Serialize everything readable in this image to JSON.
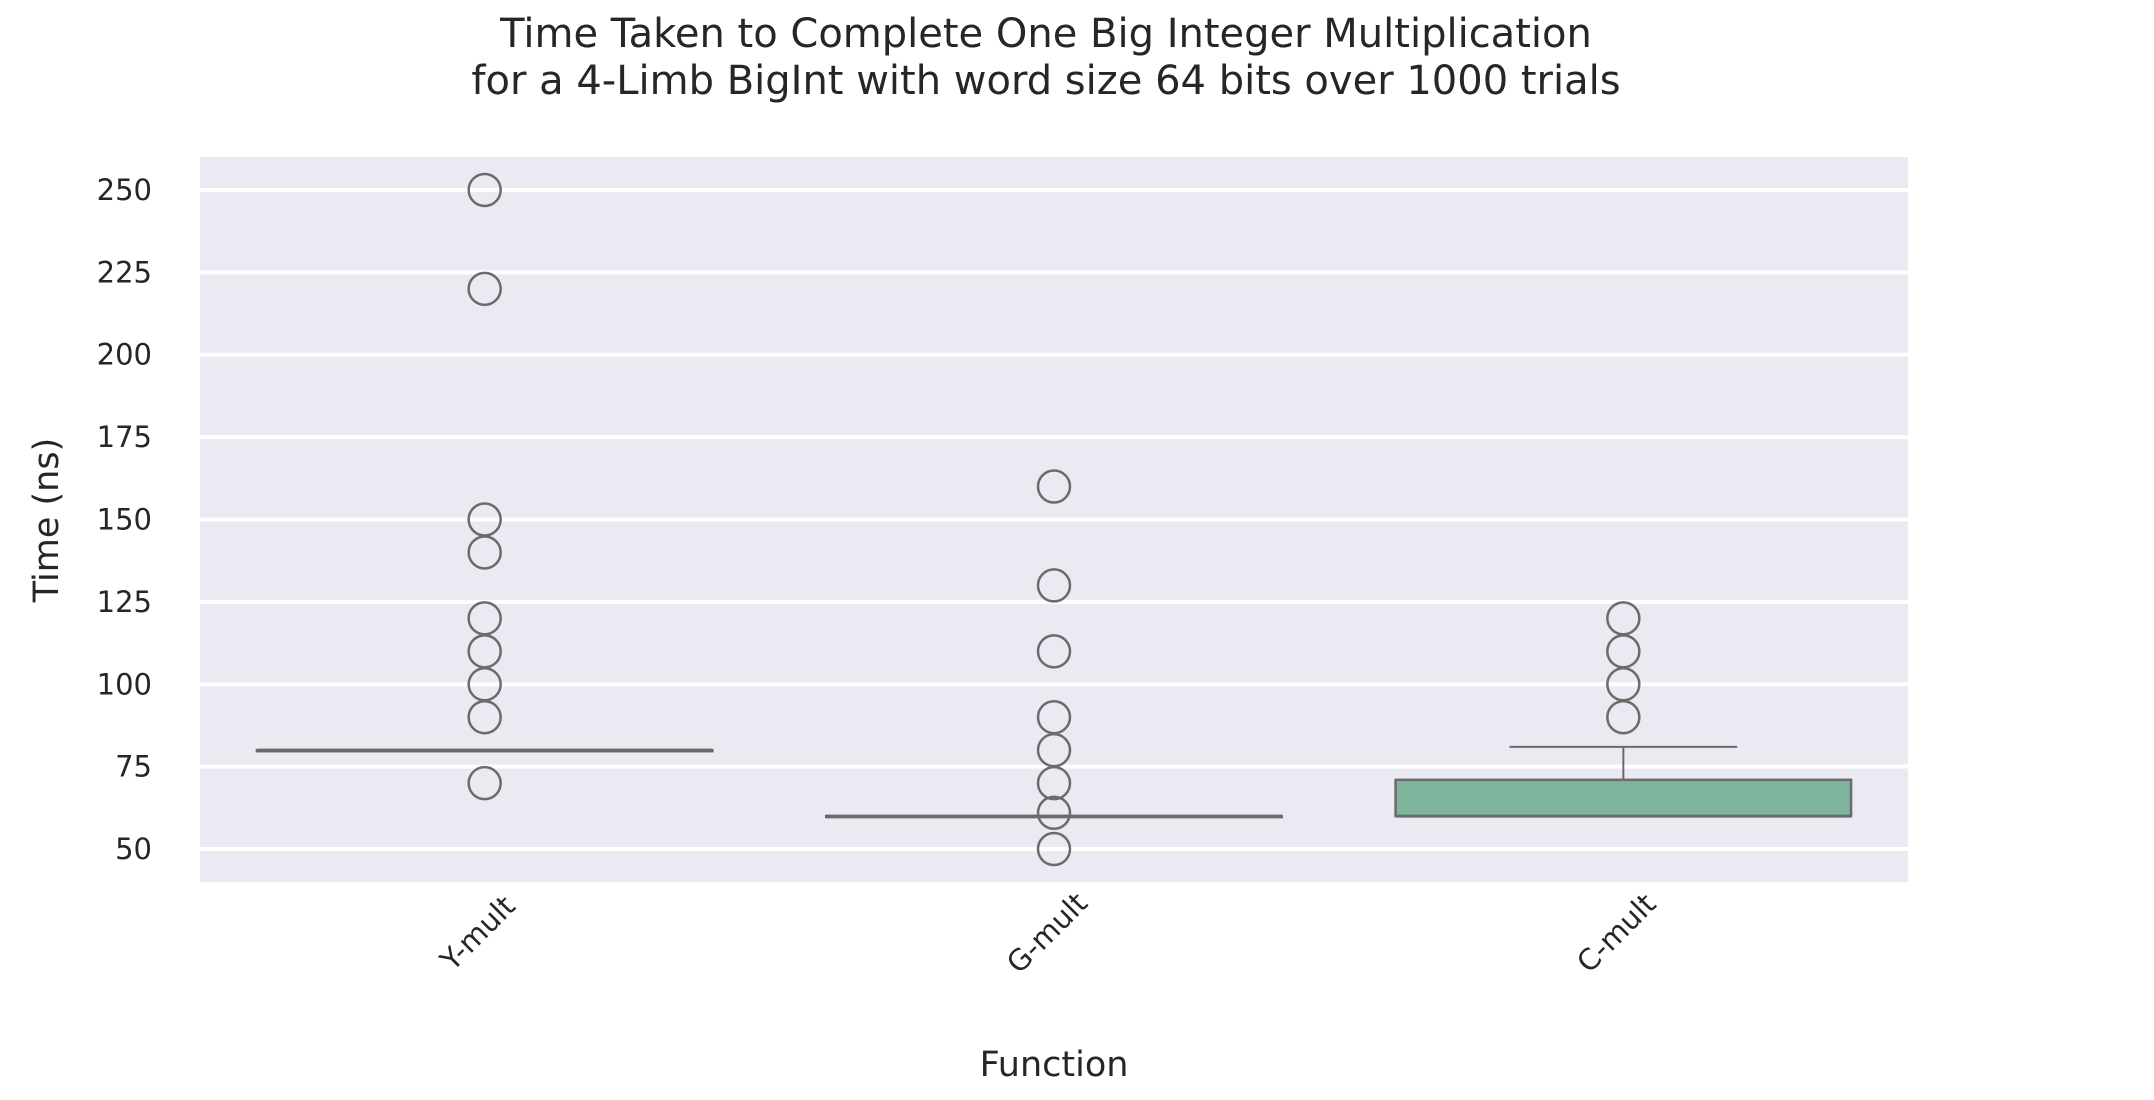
{
  "chart_data": {
    "type": "box",
    "title": "Time Taken to Complete One Big Integer Multiplication",
    "subtitle": "for a 4-Limb BigInt with word size 64 bits over 1000 trials",
    "xlabel": "Function",
    "ylabel": "Time (ns)",
    "ylim": [
      40,
      260
    ],
    "yticks": [
      50,
      75,
      100,
      125,
      150,
      175,
      200,
      225,
      250
    ],
    "grid": true,
    "categories": [
      "Y-mult",
      "G-mult",
      "C-mult"
    ],
    "boxes": [
      {
        "category": "Y-mult",
        "whisker_low": 80,
        "q1": 80,
        "median": 80,
        "q3": 80,
        "whisker_high": 80,
        "fill": "#e5e5ef",
        "outliers": [
          250,
          220,
          150,
          140,
          120,
          110,
          100,
          90,
          70
        ]
      },
      {
        "category": "G-mult",
        "whisker_low": 60,
        "q1": 60,
        "median": 60,
        "q3": 60,
        "whisker_high": 60,
        "fill": "#e5e5ef",
        "outliers": [
          160,
          130,
          110,
          90,
          80,
          70,
          61,
          50
        ]
      },
      {
        "category": "C-mult",
        "whisker_low": 60,
        "q1": 60,
        "median": 60,
        "q3": 71,
        "whisker_high": 81,
        "fill": "#7fb59c",
        "outliers": [
          120,
          110,
          100,
          90
        ]
      }
    ]
  }
}
